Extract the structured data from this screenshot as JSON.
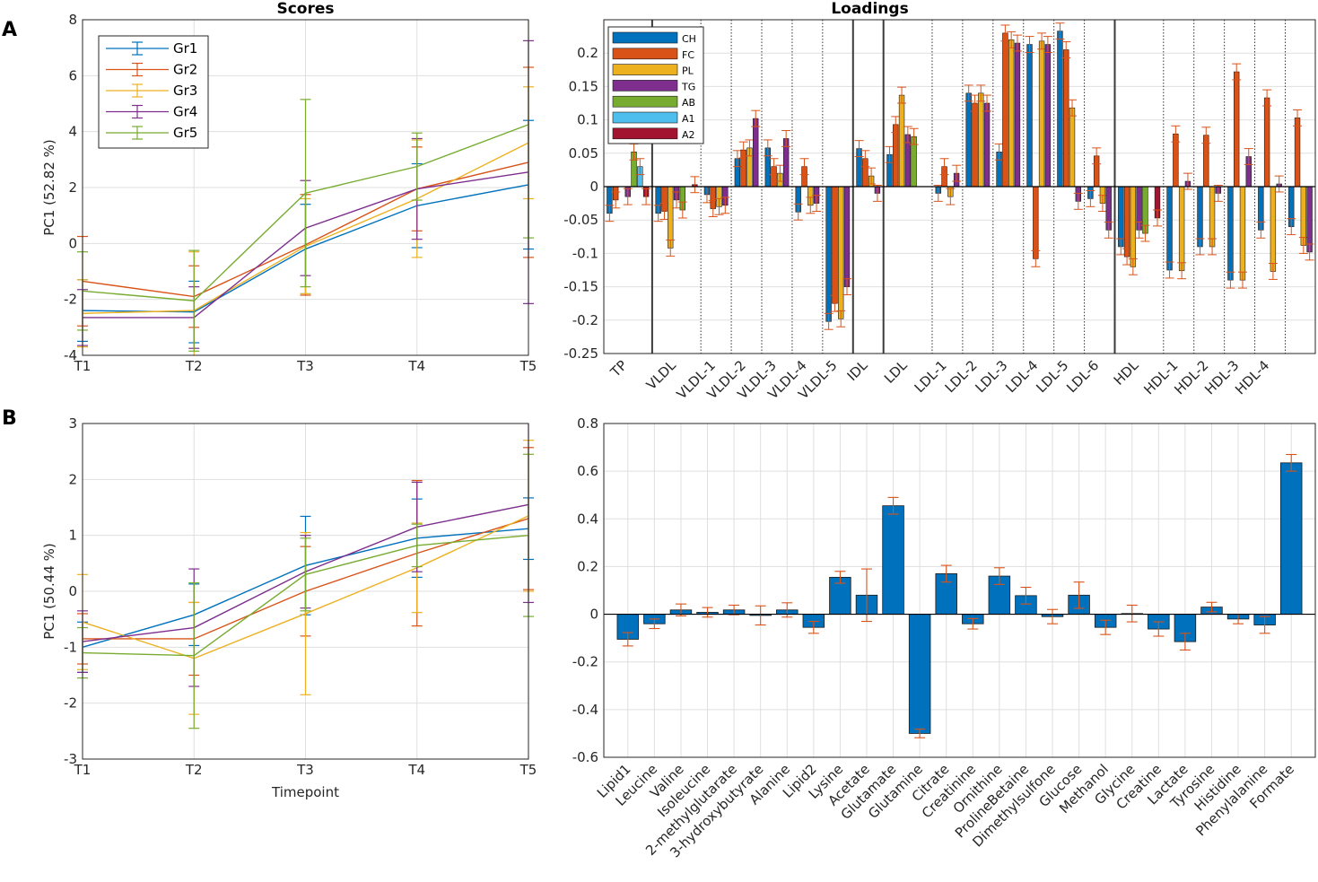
{
  "panel_labels": {
    "a": "A",
    "b": "B"
  },
  "colors": {
    "Gr1": "#0072BD",
    "Gr2": "#D95319",
    "Gr3": "#EDB120",
    "Gr4": "#7E2F8E",
    "Gr5": "#77AC30",
    "bar": "#0072BD",
    "errbar": "#D95319",
    "CH": "#0072BD",
    "FC": "#D95319",
    "PL": "#EDB120",
    "TG": "#7E2F8E",
    "AB": "#77AC30",
    "A1": "#4DBEEE",
    "A2": "#A2142F"
  },
  "chart_data": [
    {
      "id": "scoresA",
      "type": "line",
      "title": "Scores",
      "xlabel": "",
      "ylabel": "PC1 (52.82 %)",
      "categories": [
        "T1",
        "T2",
        "T3",
        "T4",
        "T5"
      ],
      "ylim": [
        -4,
        8
      ],
      "yticks": [
        -4,
        -2,
        0,
        2,
        4,
        6,
        8
      ],
      "legend_position": "top-left",
      "series": [
        {
          "name": "Gr1",
          "values": [
            -2.4,
            -2.45,
            -0.2,
            1.35,
            2.1
          ],
          "err": [
            1.1,
            1.1,
            1.6,
            1.5,
            2.3
          ]
        },
        {
          "name": "Gr2",
          "values": [
            -1.35,
            -1.9,
            -0.05,
            1.95,
            2.9
          ],
          "err": [
            1.6,
            1.1,
            1.8,
            1.5,
            3.4
          ]
        },
        {
          "name": "Gr3",
          "values": [
            -2.5,
            -2.4,
            -0.1,
            1.6,
            3.6
          ],
          "err": [
            1.2,
            2.1,
            1.7,
            2.1,
            2.0
          ]
        },
        {
          "name": "Gr4",
          "values": [
            -2.65,
            -2.65,
            0.55,
            1.95,
            2.55
          ],
          "err": [
            1.0,
            1.1,
            1.7,
            1.8,
            4.7
          ]
        },
        {
          "name": "Gr5",
          "values": [
            -1.7,
            -2.05,
            1.8,
            2.75,
            4.25
          ],
          "err": [
            1.4,
            1.8,
            3.35,
            1.2,
            4.05
          ]
        }
      ]
    },
    {
      "id": "loadingsA",
      "type": "bar",
      "title": "Loadings",
      "ylim": [
        -0.25,
        0.25
      ],
      "yticks": [
        -0.25,
        -0.2,
        -0.15,
        -0.1,
        -0.05,
        0,
        0.05,
        0.1,
        0.15,
        0.2
      ],
      "ytick_labels": [
        "-0.25",
        "-0.2",
        "-0.15",
        "-0.1",
        "-0.05",
        "0",
        "0.05",
        "0.1",
        "0.15",
        "0.2"
      ],
      "legend_position": "top-left",
      "legend": [
        "CH",
        "FC",
        "PL",
        "TG",
        "AB",
        "A1",
        "A2"
      ],
      "groups": [
        {
          "label": "TP",
          "bars": [
            [
              "CH",
              -0.04
            ],
            [
              "FC",
              -0.02
            ],
            [
              "PL",
              null
            ],
            [
              "TG",
              -0.015
            ],
            [
              "AB",
              0.052
            ],
            [
              "A1",
              0.03
            ],
            [
              "A2",
              -0.015
            ]
          ]
        },
        {
          "label": "VLDL",
          "bars": [
            [
              "CH",
              -0.04
            ],
            [
              "FC",
              -0.037
            ],
            [
              "PL",
              -0.092
            ],
            [
              "TG",
              -0.02
            ],
            [
              "AB",
              -0.035
            ],
            [
              "A1",
              null
            ],
            [
              "A2",
              0.003
            ]
          ]
        },
        {
          "label": "VLDL-1",
          "bars": [
            [
              "CH",
              -0.012
            ],
            [
              "FC",
              -0.033
            ],
            [
              "PL",
              -0.03
            ],
            [
              "TG",
              -0.028
            ]
          ]
        },
        {
          "label": "VLDL-2",
          "bars": [
            [
              "CH",
              0.042
            ],
            [
              "FC",
              0.055
            ],
            [
              "PL",
              0.058
            ],
            [
              "TG",
              0.102
            ]
          ]
        },
        {
          "label": "VLDL-3",
          "bars": [
            [
              "CH",
              0.058
            ],
            [
              "FC",
              0.03
            ],
            [
              "PL",
              0.02
            ],
            [
              "TG",
              0.072
            ]
          ]
        },
        {
          "label": "VLDL-4",
          "bars": [
            [
              "CH",
              -0.038
            ],
            [
              "FC",
              0.03
            ],
            [
              "PL",
              -0.028
            ],
            [
              "TG",
              -0.025
            ]
          ]
        },
        {
          "label": "VLDL-5",
          "bars": [
            [
              "CH",
              -0.202
            ],
            [
              "FC",
              -0.175
            ],
            [
              "PL",
              -0.198
            ],
            [
              "TG",
              -0.15
            ]
          ]
        },
        {
          "label": "IDL",
          "bars": [
            [
              "CH",
              0.057
            ],
            [
              "FC",
              0.042
            ],
            [
              "PL",
              0.016
            ],
            [
              "TG",
              -0.01
            ]
          ]
        },
        {
          "label": "LDL",
          "bars": [
            [
              "CH",
              0.048
            ],
            [
              "FC",
              0.093
            ],
            [
              "PL",
              0.137
            ],
            [
              "TG",
              0.078
            ],
            [
              "AB",
              0.075
            ],
            [
              "A1",
              null
            ],
            [
              "A2",
              null
            ]
          ]
        },
        {
          "label": "LDL-1",
          "bars": [
            [
              "CH",
              -0.01
            ],
            [
              "FC",
              0.03
            ],
            [
              "PL",
              -0.015
            ],
            [
              "TG",
              0.02
            ]
          ]
        },
        {
          "label": "LDL-2",
          "bars": [
            [
              "CH",
              0.14
            ],
            [
              "FC",
              0.125
            ],
            [
              "PL",
              0.14
            ],
            [
              "TG",
              0.125
            ]
          ]
        },
        {
          "label": "LDL-3",
          "bars": [
            [
              "CH",
              0.052
            ],
            [
              "FC",
              0.23
            ],
            [
              "PL",
              0.22
            ],
            [
              "TG",
              0.215
            ]
          ]
        },
        {
          "label": "LDL-4",
          "bars": [
            [
              "CH",
              0.213
            ],
            [
              "FC",
              -0.108
            ],
            [
              "PL",
              0.218
            ],
            [
              "TG",
              0.213
            ]
          ]
        },
        {
          "label": "LDL-5",
          "bars": [
            [
              "CH",
              0.233
            ],
            [
              "FC",
              0.205
            ],
            [
              "PL",
              0.118
            ],
            [
              "TG",
              -0.022
            ]
          ]
        },
        {
          "label": "LDL-6",
          "bars": [
            [
              "CH",
              -0.018
            ],
            [
              "FC",
              0.046
            ],
            [
              "PL",
              -0.025
            ],
            [
              "TG",
              -0.065
            ]
          ]
        },
        {
          "label": "HDL",
          "bars": [
            [
              "CH",
              -0.09
            ],
            [
              "FC",
              -0.105
            ],
            [
              "PL",
              -0.12
            ],
            [
              "TG",
              -0.065
            ],
            [
              "AB",
              -0.07
            ],
            [
              "A1",
              null
            ],
            [
              "A2",
              -0.047
            ]
          ]
        },
        {
          "label": "HDL-1",
          "bars": [
            [
              "CH",
              -0.125
            ],
            [
              "FC",
              0.079
            ],
            [
              "PL",
              -0.126
            ],
            [
              "TG",
              0.008
            ]
          ]
        },
        {
          "label": "HDL-2",
          "bars": [
            [
              "CH",
              -0.09
            ],
            [
              "FC",
              0.077
            ],
            [
              "PL",
              -0.09
            ],
            [
              "TG",
              -0.01
            ]
          ]
        },
        {
          "label": "HDL-3",
          "bars": [
            [
              "CH",
              -0.14
            ],
            [
              "FC",
              0.172
            ],
            [
              "PL",
              -0.14
            ],
            [
              "TG",
              0.045
            ]
          ]
        },
        {
          "label": "HDL-4",
          "bars": [
            [
              "CH",
              -0.065
            ],
            [
              "FC",
              0.133
            ],
            [
              "PL",
              -0.127
            ],
            [
              "TG",
              0.004
            ]
          ]
        }
      ],
      "trailing_bars": [
        [
          "CH",
          -0.06
        ],
        [
          "FC",
          0.103
        ],
        [
          "PL",
          -0.088
        ],
        [
          "TG",
          -0.098
        ]
      ]
    },
    {
      "id": "scoresB",
      "type": "line",
      "title": "",
      "xlabel": "Timepoint",
      "ylabel": "PC1 (50.44 %)",
      "categories": [
        "T1",
        "T2",
        "T3",
        "T4",
        "T5"
      ],
      "ylim": [
        -3,
        3
      ],
      "yticks": [
        -3,
        -2,
        -1,
        0,
        1,
        2,
        3
      ],
      "series": [
        {
          "name": "Gr1",
          "values": [
            -1.0,
            -0.42,
            0.46,
            0.95,
            1.12
          ],
          "err": [
            0.45,
            0.55,
            0.88,
            0.7,
            0.55
          ]
        },
        {
          "name": "Gr2",
          "values": [
            -0.85,
            -0.85,
            0.0,
            0.68,
            1.3
          ],
          "err": [
            0.45,
            0.65,
            0.8,
            1.3,
            1.27
          ]
        },
        {
          "name": "Gr3",
          "values": [
            -0.55,
            -1.2,
            -0.4,
            0.42,
            1.35
          ],
          "err": [
            0.85,
            1.0,
            1.45,
            0.8,
            1.35
          ]
        },
        {
          "name": "Gr4",
          "values": [
            -0.9,
            -0.65,
            0.35,
            1.15,
            1.55
          ],
          "err": [
            0.55,
            1.05,
            0.65,
            0.8,
            1.75
          ]
        },
        {
          "name": "Gr5",
          "values": [
            -1.1,
            -1.15,
            0.3,
            0.82,
            1.0
          ],
          "err": [
            0.45,
            1.3,
            0.65,
            0.38,
            1.45
          ]
        }
      ]
    },
    {
      "id": "loadingsB",
      "type": "bar",
      "title": "",
      "ylim": [
        -0.6,
        0.8
      ],
      "yticks": [
        -0.6,
        -0.4,
        -0.2,
        0,
        0.2,
        0.4,
        0.6,
        0.8
      ],
      "categories": [
        "Lipid1",
        "Leucine",
        "Valine",
        "Isoleucine",
        "2-methylglutarate",
        "3-hydroxybutyrate",
        "Alanine",
        "Lipid2",
        "Lysine",
        "Acetate",
        "Glutamate",
        "Glutamine",
        "Citrate",
        "Creatinine",
        "Ornithine",
        "ProlineBetaine",
        "Dimethylsulfone",
        "Glucose",
        "Methanol",
        "Glycine",
        "Creatine",
        "Lactate",
        "Tyrosine",
        "Histidine",
        "Phenylalanine",
        "Formate"
      ],
      "values": [
        -0.105,
        -0.04,
        0.018,
        0.008,
        0.018,
        -0.005,
        0.018,
        -0.055,
        0.155,
        0.08,
        0.455,
        -0.5,
        0.17,
        -0.04,
        0.16,
        0.078,
        -0.01,
        0.08,
        -0.055,
        0.003,
        -0.062,
        -0.115,
        0.03,
        -0.02,
        -0.045,
        0.635
      ],
      "errors": [
        0.028,
        0.02,
        0.025,
        0.02,
        0.02,
        0.04,
        0.03,
        0.025,
        0.025,
        0.11,
        0.035,
        0.018,
        0.035,
        0.022,
        0.035,
        0.035,
        0.03,
        0.055,
        0.03,
        0.035,
        0.03,
        0.035,
        0.02,
        0.02,
        0.035,
        0.035
      ]
    }
  ]
}
